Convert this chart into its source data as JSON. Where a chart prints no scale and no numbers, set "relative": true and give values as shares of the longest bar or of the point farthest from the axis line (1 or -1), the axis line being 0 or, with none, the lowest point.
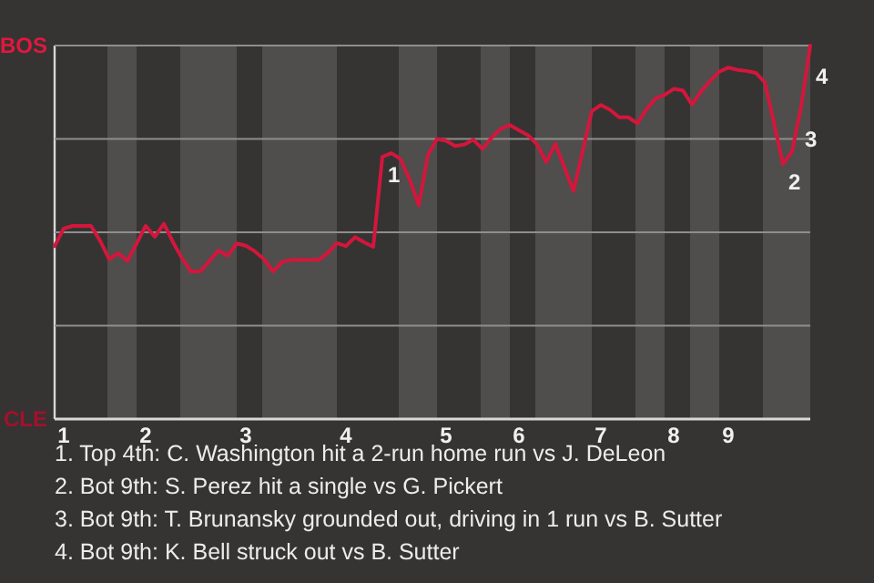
{
  "chart_data": {
    "type": "line",
    "relative": true,
    "categories": [
      null,
      "1",
      null,
      null,
      null,
      null,
      null,
      null,
      null,
      null,
      "2",
      null,
      null,
      null,
      null,
      null,
      null,
      null,
      null,
      null,
      null,
      "3",
      null,
      null,
      null,
      null,
      null,
      null,
      null,
      null,
      null,
      null,
      "4",
      null,
      null,
      null,
      null,
      null,
      null,
      null,
      null,
      null,
      null,
      "5",
      null,
      null,
      null,
      null,
      null,
      null,
      null,
      "6",
      null,
      null,
      null,
      null,
      null,
      null,
      null,
      null,
      "7",
      null,
      null,
      null,
      null,
      null,
      null,
      null,
      "8",
      null,
      null,
      null,
      null,
      null,
      "9",
      null,
      null,
      null,
      null,
      null,
      null,
      null,
      null,
      null
    ],
    "series": [
      {
        "color": "#d4163c",
        "values": [
          0.463,
          0.51,
          0.517,
          0.517,
          0.517,
          0.477,
          0.428,
          0.444,
          0.423,
          0.47,
          0.517,
          0.488,
          0.523,
          0.474,
          0.43,
          0.395,
          0.395,
          0.423,
          0.451,
          0.437,
          0.47,
          0.464,
          0.449,
          0.428,
          0.395,
          0.421,
          0.426,
          0.426,
          0.426,
          0.426,
          0.444,
          0.471,
          0.463,
          0.487,
          0.473,
          0.461,
          0.702,
          0.712,
          0.696,
          0.641,
          0.572,
          0.707,
          0.75,
          0.745,
          0.731,
          0.735,
          0.748,
          0.723,
          0.753,
          0.777,
          0.787,
          0.773,
          0.76,
          0.735,
          0.688,
          0.737,
          0.673,
          0.61,
          0.717,
          0.824,
          0.841,
          0.828,
          0.808,
          0.808,
          0.792,
          0.829,
          0.858,
          0.868,
          0.884,
          0.88,
          0.842,
          0.877,
          0.905,
          0.93,
          0.941,
          0.935,
          0.932,
          0.927,
          0.902,
          0.795,
          0.682,
          0.716,
          0.837,
          1.0
        ]
      }
    ],
    "ref_lines": [
      {
        "axis": "y",
        "value": 1,
        "label": "BOS",
        "color": "#8f8e8c"
      },
      {
        "axis": "y",
        "value": 0.75,
        "color": "#8f8e8c"
      },
      {
        "axis": "y",
        "value": 0.5,
        "color": "#8f8e8c"
      },
      {
        "axis": "y",
        "value": 0.25,
        "color": "#8f8e8c"
      }
    ],
    "annotations": [
      {
        "text": "1",
        "y": 0.702
      },
      {
        "text": "2",
        "y": 0.682
      },
      "3",
      "4",
      "CLE",
      "1. Top 4th: C. Washington hit a 2-run home run vs J. DeLeon",
      "2. Bot 9th: S. Perez hit a single vs G. Pickert",
      "3. Bot 9th: T. Brunansky grounded out, driving in 1 run vs B. Sutter",
      "4. Bot 9th: K. Bell struck out vs B. Sutter"
    ]
  }
}
